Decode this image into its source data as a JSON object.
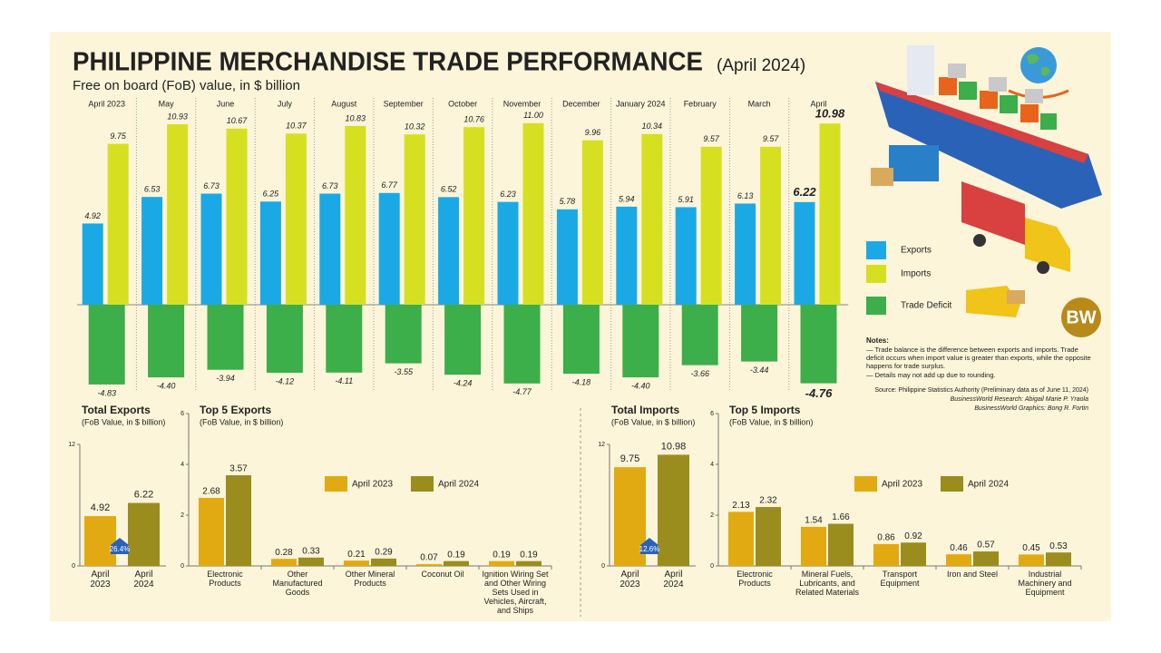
{
  "chart_data": [
    {
      "type": "bar",
      "title": "PHILIPPINE MERCHANDISE TRADE PERFORMANCE",
      "subtitle": "(April 2024)",
      "description": "Free on board (FoB) value, in $ billion",
      "categories": [
        "April 2023",
        "May",
        "June",
        "July",
        "August",
        "September",
        "October",
        "November",
        "December",
        "January 2024",
        "February",
        "March",
        "April"
      ],
      "series": [
        {
          "name": "Exports",
          "color": "#1ba9e6",
          "values": [
            4.92,
            6.53,
            6.73,
            6.25,
            6.73,
            6.77,
            6.52,
            6.23,
            5.78,
            5.94,
            5.91,
            6.13,
            6.22
          ]
        },
        {
          "name": "Imports",
          "color": "#d6e021",
          "values": [
            9.75,
            10.93,
            10.67,
            10.37,
            10.83,
            10.32,
            10.76,
            11.0,
            9.96,
            10.34,
            9.57,
            9.57,
            10.98
          ],
          "value_labels": [
            "9.75",
            "10.93",
            "10.67",
            "10.37",
            "10.83",
            "10.32",
            "10.76",
            "11.00",
            "9.96",
            "10.34",
            "9.57",
            "9.57",
            "10.98"
          ]
        },
        {
          "name": "Trade Deficit",
          "color": "#3cae4a",
          "values": [
            -4.83,
            -4.4,
            -3.94,
            -4.12,
            -4.11,
            -3.55,
            -4.24,
            -4.77,
            -4.18,
            -4.4,
            -3.66,
            -3.44,
            -4.76
          ],
          "value_labels": [
            "-4.83",
            "-4.40",
            "-3.94",
            "-4.12",
            "-4.11",
            "-3.55",
            "-4.24",
            "-4.77",
            "-4.18",
            "-4.40",
            "-3.66",
            "-3.44",
            "-4.76"
          ]
        }
      ]
    },
    {
      "type": "total",
      "title": "Total Exports",
      "subtitle": "(FoB Value, in $ billion)",
      "categories": [
        "April 2023",
        "April 2024"
      ],
      "values": [
        4.92,
        6.22
      ],
      "colors": [
        "#e2aa12",
        "#9b8c1e"
      ],
      "annotation": "26.4%",
      "ylim": [
        0,
        12
      ],
      "yticks": [
        0,
        12
      ]
    },
    {
      "type": "grouped",
      "title": "Top 5 Exports",
      "subtitle": "(FoB Value, in $ billion)",
      "categories": [
        "Electronic Products",
        "Other Manufactured Goods",
        "Other Mineral Products",
        "Coconut Oil",
        "Ignition Wiring Set and Other Wiring Sets Used in Vehicles, Aircraft, and Ships"
      ],
      "series": [
        {
          "name": "April 2023",
          "color": "#e2aa12",
          "values": [
            2.68,
            0.28,
            0.21,
            0.07,
            0.19
          ]
        },
        {
          "name": "April 2024",
          "color": "#9b8c1e",
          "values": [
            3.57,
            0.33,
            0.29,
            0.19,
            0.19
          ]
        }
      ],
      "ylim": [
        0,
        6
      ],
      "yticks": [
        0,
        2,
        4,
        6
      ]
    },
    {
      "type": "total",
      "title": "Total Imports",
      "subtitle": "(FoB Value, in $ billion)",
      "categories": [
        "April 2023",
        "April 2024"
      ],
      "values": [
        9.75,
        10.98
      ],
      "colors": [
        "#e2aa12",
        "#9b8c1e"
      ],
      "annotation": "12.6%",
      "ylim": [
        0,
        12
      ],
      "yticks": [
        0,
        12
      ]
    },
    {
      "type": "grouped",
      "title": "Top 5 Imports",
      "subtitle": "(FoB Value, in $ billion)",
      "categories": [
        "Electronic Products",
        "Mineral Fuels, Lubricants, and Related Materials",
        "Transport Equipment",
        "Iron and Steel",
        "Industrial Machinery and Equipment"
      ],
      "series": [
        {
          "name": "April 2023",
          "color": "#e2aa12",
          "values": [
            2.13,
            1.54,
            0.86,
            0.46,
            0.45
          ]
        },
        {
          "name": "April 2024",
          "color": "#9b8c1e",
          "values": [
            2.32,
            1.66,
            0.92,
            0.57,
            0.53
          ]
        }
      ],
      "ylim": [
        0,
        6
      ],
      "yticks": [
        0,
        2,
        4,
        6
      ]
    }
  ],
  "notes": {
    "heading": "Notes:",
    "items": [
      "— Trade balance is the difference between exports and imports. Trade deficit occurs when import value is greater than exports, while the opposite happens for trade surplus.",
      "— Details may not add up due to rounding."
    ],
    "source": "Source: Philippine Statistics Authority (Preliminary data as of June 11, 2024)",
    "research": "BusinessWorld Research: Abigail Marie P. Yraola",
    "graphics": "BusinessWorld Graphics: Bong R. Fortin"
  },
  "logo": "BW"
}
